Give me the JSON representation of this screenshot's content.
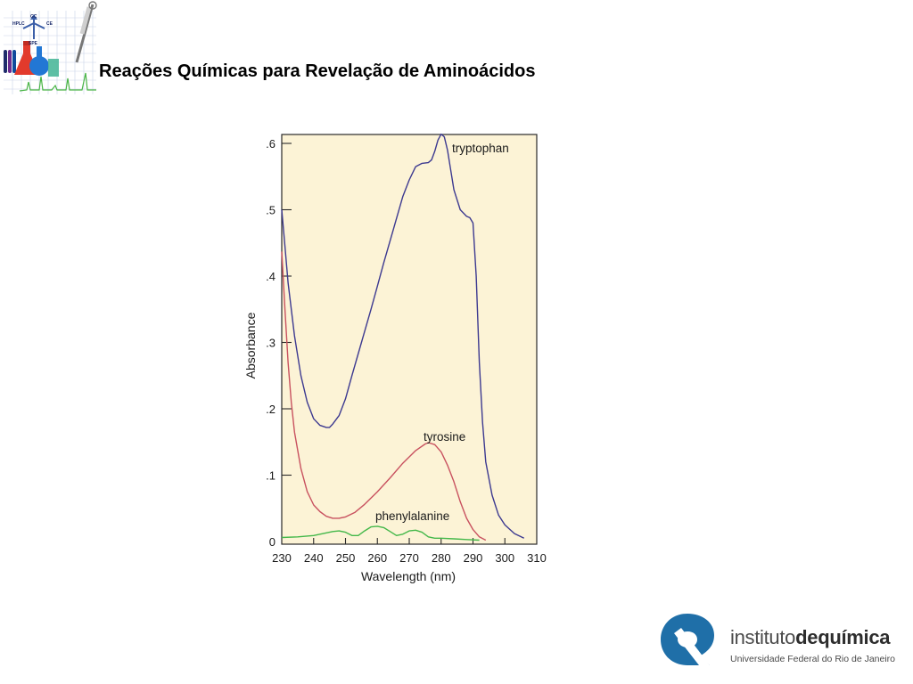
{
  "slide": {
    "title": "Reações Químicas para Revelação de Aminoácidos"
  },
  "top_logo": {
    "labels": [
      "HPLC",
      "GC",
      "CE",
      "SPE"
    ]
  },
  "colors": {
    "plot_background": "#fcf3d6",
    "tryptophan": "#3c3990",
    "tyrosine": "#c8515f",
    "phenylalanine": "#44b84a",
    "institute_blue": "#1f6fa8"
  },
  "chart_data": {
    "type": "line",
    "xlabel": "Wavelength (nm)",
    "ylabel": "Absorbance",
    "xlim": [
      230,
      310
    ],
    "ylim": [
      0,
      0.6
    ],
    "x_ticks": [
      230,
      240,
      250,
      260,
      270,
      280,
      290,
      300,
      310
    ],
    "x_tick_labels": [
      "230",
      "240",
      "250",
      "260",
      "270",
      "280",
      "290",
      "300",
      "310"
    ],
    "y_ticks": [
      0,
      0.1,
      0.2,
      0.3,
      0.4,
      0.5,
      0.6
    ],
    "y_tick_labels": [
      "0",
      ".1",
      ".2",
      ".3",
      ".4",
      ".5",
      ".6"
    ],
    "grid": false,
    "legend": "inline labels",
    "series": [
      {
        "name": "tryptophan",
        "x": [
          230,
          231,
          232,
          234,
          236,
          238,
          240,
          242,
          244,
          245,
          246,
          248,
          250,
          252,
          255,
          258,
          260,
          262,
          265,
          268,
          270,
          272,
          274,
          276,
          277,
          278,
          279,
          280,
          281,
          282,
          283,
          284,
          286,
          288,
          289,
          290,
          291,
          292,
          293,
          294,
          296,
          298,
          300,
          303,
          306
        ],
        "y": [
          0.5,
          0.445,
          0.39,
          0.31,
          0.25,
          0.21,
          0.185,
          0.175,
          0.172,
          0.172,
          0.177,
          0.19,
          0.215,
          0.25,
          0.3,
          0.35,
          0.385,
          0.42,
          0.47,
          0.52,
          0.545,
          0.565,
          0.57,
          0.571,
          0.575,
          0.588,
          0.605,
          0.614,
          0.61,
          0.59,
          0.56,
          0.53,
          0.5,
          0.49,
          0.488,
          0.48,
          0.4,
          0.27,
          0.18,
          0.12,
          0.07,
          0.04,
          0.025,
          0.012,
          0.005
        ]
      },
      {
        "name": "tyrosine",
        "x": [
          230,
          231,
          232,
          233,
          234,
          236,
          238,
          240,
          242,
          244,
          246,
          248,
          250,
          253,
          256,
          260,
          264,
          268,
          272,
          275,
          276,
          278,
          280,
          282,
          284,
          286,
          288,
          290,
          292,
          294
        ],
        "y": [
          0.437,
          0.35,
          0.27,
          0.21,
          0.165,
          0.11,
          0.075,
          0.055,
          0.045,
          0.038,
          0.035,
          0.035,
          0.037,
          0.044,
          0.056,
          0.075,
          0.096,
          0.118,
          0.137,
          0.147,
          0.149,
          0.146,
          0.135,
          0.115,
          0.09,
          0.06,
          0.035,
          0.018,
          0.007,
          0.002
        ]
      },
      {
        "name": "phenylalanine",
        "x": [
          230,
          235,
          240,
          243,
          246,
          248,
          250,
          252,
          254,
          256,
          258,
          260,
          262,
          264,
          266,
          268,
          270,
          272,
          274,
          276,
          278,
          280,
          284,
          288,
          292
        ],
        "y": [
          0.006,
          0.007,
          0.009,
          0.012,
          0.015,
          0.016,
          0.014,
          0.009,
          0.009,
          0.016,
          0.022,
          0.023,
          0.021,
          0.015,
          0.009,
          0.011,
          0.016,
          0.017,
          0.014,
          0.007,
          0.005,
          0.005,
          0.004,
          0.003,
          0.002
        ]
      }
    ]
  },
  "institute": {
    "name_part1": "instituto",
    "name_part2": "dequímica",
    "university": "Universidade Federal do Rio de Janeiro"
  }
}
